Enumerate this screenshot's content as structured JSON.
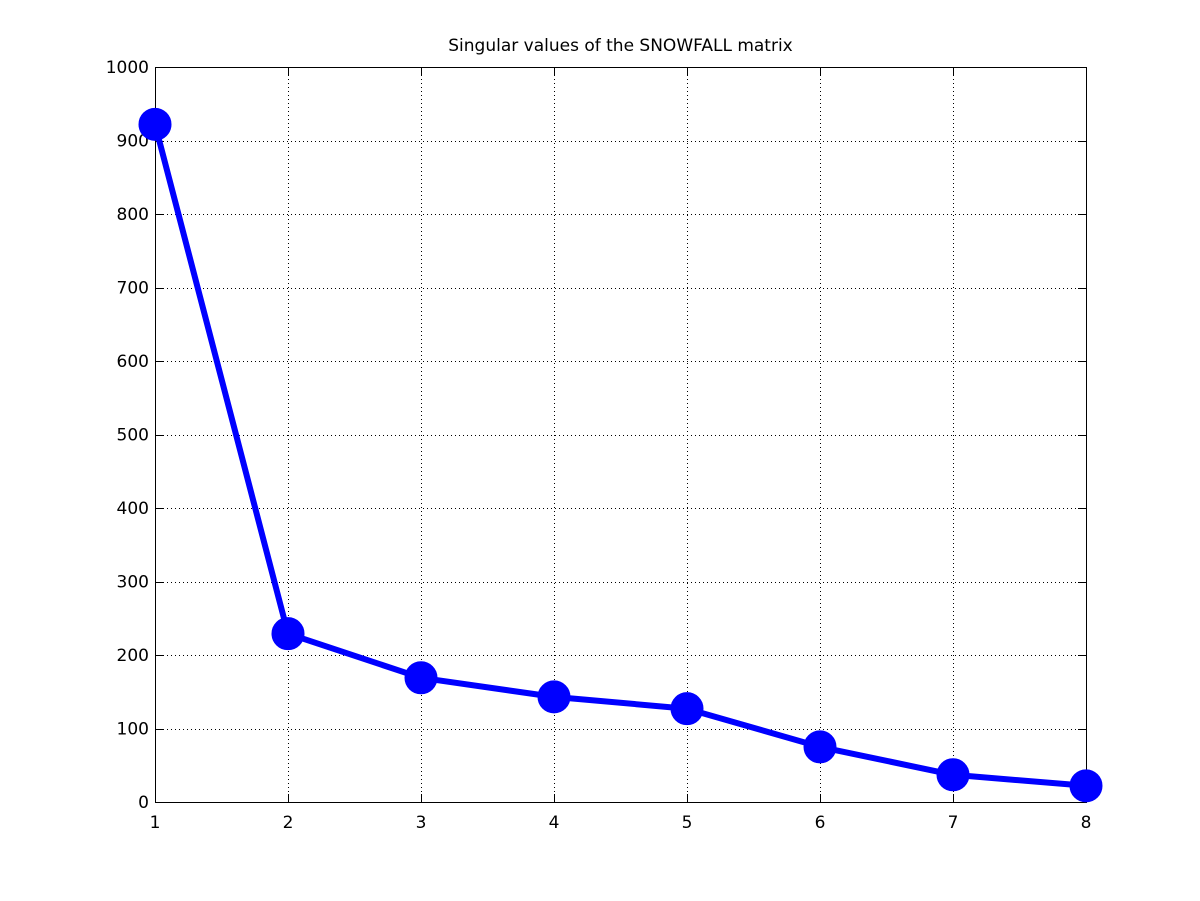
{
  "chart_data": {
    "type": "line",
    "title": "Singular values of the SNOWFALL matrix",
    "xlabel": "",
    "ylabel": "",
    "x": [
      1,
      2,
      3,
      4,
      5,
      6,
      7,
      8
    ],
    "series": [
      {
        "values": [
          922,
          229,
          169,
          143,
          127,
          75,
          37,
          22
        ],
        "color": "#0000ff",
        "marker": "filled-circle"
      }
    ],
    "xlim": [
      1,
      8
    ],
    "ylim": [
      0,
      1000
    ],
    "xticks": [
      1,
      2,
      3,
      4,
      5,
      6,
      7,
      8
    ],
    "yticks": [
      0,
      100,
      200,
      300,
      400,
      500,
      600,
      700,
      800,
      900,
      1000
    ],
    "grid": true,
    "grid_style": "dotted",
    "legend": "none"
  }
}
